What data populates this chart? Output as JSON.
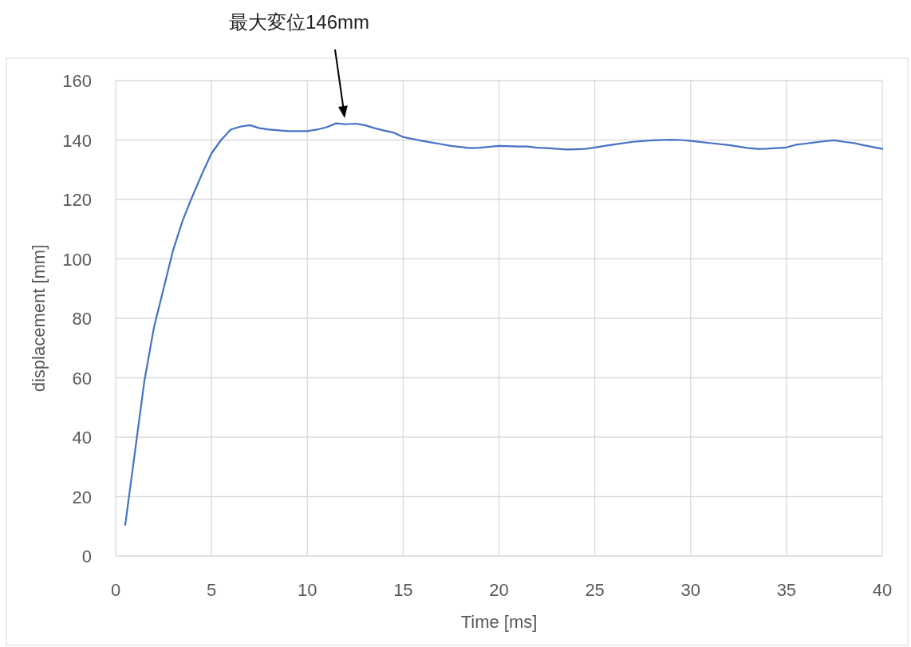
{
  "chart_data": {
    "type": "line",
    "xlabel": "Time [ms]",
    "ylabel": "displacement [mm]",
    "xlim": [
      0,
      40
    ],
    "xticks": [
      0,
      5,
      10,
      15,
      20,
      25,
      30,
      35,
      40
    ],
    "ylim": [
      0,
      160
    ],
    "yticks": [
      0,
      20,
      40,
      60,
      80,
      100,
      120,
      140,
      160
    ],
    "grid": true,
    "marker": "none",
    "line_style": "solid",
    "x": [
      0.5,
      1.5,
      2,
      3,
      3.5,
      4,
      4.5,
      5,
      5.5,
      6,
      6.5,
      7,
      7.5,
      8,
      9,
      10,
      10.5,
      11,
      11.5,
      12,
      12.5,
      13,
      13.5,
      14,
      14.5,
      15,
      16,
      17,
      17.5,
      18.5,
      19,
      20,
      21,
      21.5,
      22,
      22.5,
      23.5,
      24,
      24.5,
      25,
      26,
      27,
      28,
      29,
      29.5,
      30,
      31,
      32,
      33,
      33.5,
      34,
      35,
      35.5,
      36,
      37,
      37.5,
      38,
      38.5,
      39,
      40
    ],
    "series": [
      {
        "color": "#4472c4",
        "values": [
          10.5,
          59,
          77,
          103,
          113,
          121,
          128.5,
          135.5,
          140,
          143.5,
          144.5,
          145,
          144,
          143.5,
          143,
          143,
          143.5,
          144.3,
          145.6,
          145.3,
          145.5,
          145,
          144,
          143.2,
          142.5,
          141,
          139.7,
          138.6,
          138,
          137.3,
          137.4,
          138,
          137.8,
          137.8,
          137.4,
          137.3,
          136.8,
          136.9,
          137,
          137.5,
          138.5,
          139.4,
          139.9,
          140.1,
          140,
          139.7,
          139,
          138.3,
          137.3,
          137,
          137.1,
          137.5,
          138.4,
          138.8,
          139.6,
          139.9,
          139.4,
          139,
          138.3,
          137
        ]
      }
    ],
    "annotations": [
      "最大変位146mm"
    ]
  }
}
